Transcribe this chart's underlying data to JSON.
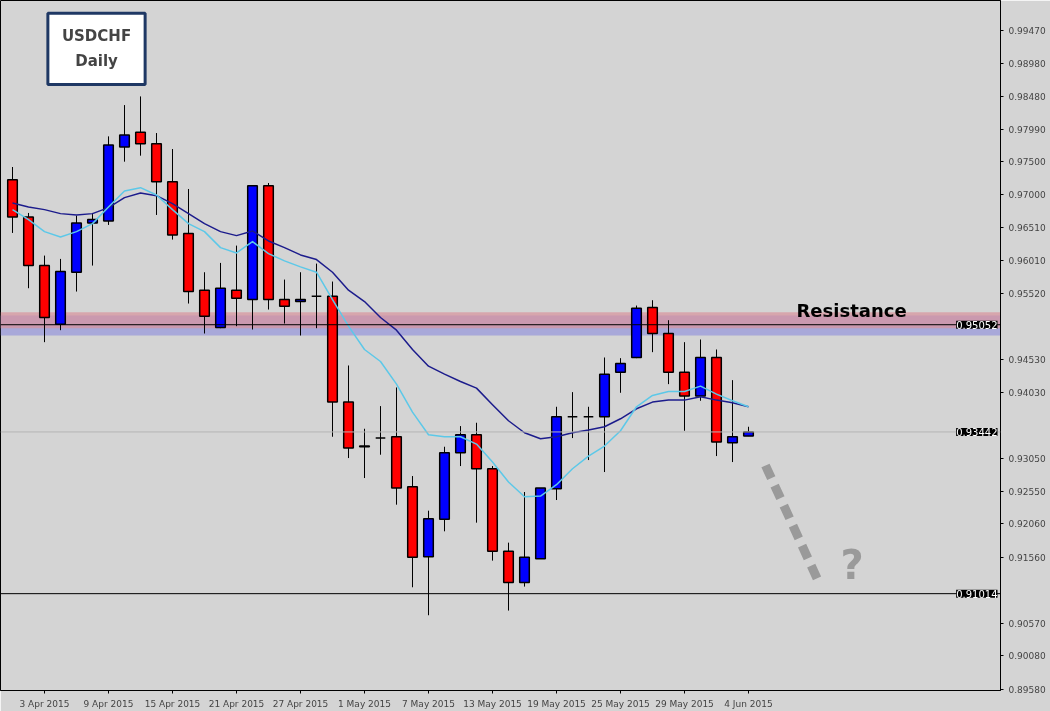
{
  "chart_data": {
    "type": "candlestick",
    "title": "USDCHF\nDaily",
    "categories": [
      null,
      null,
      "3 Apr 2015",
      null,
      null,
      null,
      "9 Apr 2015",
      null,
      null,
      null,
      "15 Apr 2015",
      null,
      null,
      null,
      "21 Apr 2015",
      null,
      null,
      null,
      "27 Apr 2015",
      null,
      null,
      null,
      "1 May 2015",
      null,
      null,
      null,
      "7 May 2015",
      null,
      null,
      null,
      "13 May 2015",
      null,
      null,
      null,
      "19 May 2015",
      null,
      null,
      null,
      "25 May 2015",
      null,
      null,
      null,
      "29 May 2015",
      null,
      null,
      null,
      "4 Jun 2015"
    ],
    "ohlc": [
      [
        0.9723,
        0.9742,
        0.9643,
        0.9667
      ],
      [
        0.9667,
        0.9673,
        0.956,
        0.9594
      ],
      [
        0.9594,
        0.9609,
        0.9479,
        0.9516
      ],
      [
        0.9506,
        0.9604,
        0.9497,
        0.9585
      ],
      [
        0.9584,
        0.9669,
        0.9555,
        0.9658
      ],
      [
        0.9658,
        0.9673,
        0.9594,
        0.9663
      ],
      [
        0.9661,
        0.9788,
        0.9655,
        0.9775
      ],
      [
        0.9772,
        0.9835,
        0.975,
        0.979
      ],
      [
        0.9794,
        0.9848,
        0.9759,
        0.9777
      ],
      [
        0.9777,
        0.9793,
        0.967,
        0.972
      ],
      [
        0.972,
        0.9769,
        0.9633,
        0.964
      ],
      [
        0.9642,
        0.9709,
        0.9537,
        0.9555
      ],
      [
        0.9557,
        0.9584,
        0.9492,
        0.9518
      ],
      [
        0.9501,
        0.9598,
        0.95,
        0.956
      ],
      [
        0.9557,
        0.9624,
        0.9503,
        0.9545
      ],
      [
        0.9543,
        0.9714,
        0.9498,
        0.9714
      ],
      [
        0.9714,
        0.9718,
        0.9528,
        0.9543
      ],
      [
        0.9543,
        0.9573,
        0.9507,
        0.9533
      ],
      [
        0.954,
        0.9584,
        0.9489,
        0.9543
      ],
      [
        0.9548,
        0.9597,
        0.95,
        0.9548
      ],
      [
        0.9548,
        0.957,
        0.9337,
        0.9389
      ],
      [
        0.9389,
        0.9444,
        0.9305,
        0.932
      ],
      [
        0.9322,
        0.9349,
        0.9275,
        0.9323
      ],
      [
        0.9335,
        0.9383,
        0.931,
        0.9335
      ],
      [
        0.9337,
        0.9411,
        0.9235,
        0.926
      ],
      [
        0.9262,
        0.9278,
        0.9111,
        0.9156
      ],
      [
        0.9157,
        0.9226,
        0.9069,
        0.9214
      ],
      [
        0.9213,
        0.9322,
        0.9195,
        0.9313
      ],
      [
        0.9313,
        0.9353,
        0.9293,
        0.934
      ],
      [
        0.934,
        0.9358,
        0.9208,
        0.9289
      ],
      [
        0.9289,
        0.9293,
        0.9151,
        0.9165
      ],
      [
        0.9165,
        0.9178,
        0.9076,
        0.9118
      ],
      [
        0.9118,
        0.9254,
        0.9112,
        0.9156
      ],
      [
        0.9154,
        0.926,
        0.9154,
        0.926
      ],
      [
        0.9259,
        0.9382,
        0.9242,
        0.9367
      ],
      [
        0.9367,
        0.9404,
        0.9335,
        0.9367
      ],
      [
        0.9367,
        0.9382,
        0.9302,
        0.9367
      ],
      [
        0.9367,
        0.9456,
        0.9284,
        0.9431
      ],
      [
        0.9434,
        0.9455,
        0.9403,
        0.9447
      ],
      [
        0.9456,
        0.9534,
        0.9455,
        0.953
      ],
      [
        0.9531,
        0.9542,
        0.9464,
        0.9492
      ],
      [
        0.9492,
        0.9512,
        0.9416,
        0.9434
      ],
      [
        0.9434,
        0.9479,
        0.9346,
        0.9398
      ],
      [
        0.9398,
        0.9483,
        0.9391,
        0.9456
      ],
      [
        0.9456,
        0.9468,
        0.9308,
        0.9329
      ],
      [
        0.9328,
        0.9422,
        0.9299,
        0.9337
      ],
      [
        0.9338,
        0.9352,
        0.9338,
        0.93442
      ]
    ],
    "colors": [
      "#ff0000",
      "#ff0000",
      "#ff0000",
      "#0000ff",
      "#0000ff",
      "#0000ff",
      "#0000ff",
      "#0000ff",
      "#ff0000",
      "#ff0000",
      "#ff0000",
      "#ff0000",
      "#ff0000",
      "#0000ff",
      "#ff0000",
      "#0000ff",
      "#ff0000",
      "#ff0000",
      "#0000ff",
      "#000000",
      "#ff0000",
      "#ff0000",
      "#0000ff",
      "#000000",
      "#ff0000",
      "#ff0000",
      "#0000ff",
      "#0000ff",
      "#0000ff",
      "#ff0000",
      "#ff0000",
      "#ff0000",
      "#0000ff",
      "#0000ff",
      "#0000ff",
      "#000000",
      "#000000",
      "#0000ff",
      "#0000ff",
      "#0000ff",
      "#ff0000",
      "#ff0000",
      "#ff0000",
      "#0000ff",
      "#ff0000",
      "#0000ff",
      "#0000ff"
    ],
    "series": [
      {
        "type": "line",
        "color": "#1c1c8c",
        "values": [
          0.9688,
          0.9682,
          0.9678,
          0.9672,
          0.967,
          0.9672,
          0.9681,
          0.9696,
          0.9703,
          0.9699,
          0.9687,
          0.9672,
          0.9657,
          0.9645,
          0.9639,
          0.9646,
          0.9631,
          0.9621,
          0.961,
          0.9603,
          0.9584,
          0.9557,
          0.954,
          0.9516,
          0.9497,
          0.9468,
          0.9443,
          0.9431,
          0.942,
          0.941,
          0.9385,
          0.9361,
          0.9343,
          0.9334,
          0.9337,
          0.9343,
          0.9347,
          0.9352,
          0.9364,
          0.9379,
          0.9389,
          0.9392,
          0.9392,
          0.9397,
          0.9392,
          0.9388,
          0.9382
        ]
      },
      {
        "type": "line",
        "color": "#5cc8e8",
        "values": [
          0.9678,
          0.9663,
          0.9645,
          0.9637,
          0.9645,
          0.9657,
          0.9682,
          0.9706,
          0.9711,
          0.97,
          0.9678,
          0.9657,
          0.9645,
          0.9621,
          0.9613,
          0.963,
          0.9612,
          0.9601,
          0.9592,
          0.9584,
          0.9543,
          0.9503,
          0.9468,
          0.945,
          0.9416,
          0.9374,
          0.934,
          0.9337,
          0.9337,
          0.9326,
          0.9299,
          0.9269,
          0.9247,
          0.9248,
          0.9265,
          0.9289,
          0.9308,
          0.9323,
          0.9346,
          0.9382,
          0.9399,
          0.9405,
          0.9405,
          0.9413,
          0.9401,
          0.9391,
          0.9382
        ]
      }
    ],
    "ylim": [
      0.8956,
      0.9992
    ],
    "yticks": [
      {
        "value": 0.8958,
        "label": "0.89580"
      },
      {
        "value": 0.9008,
        "label": "0.90080"
      },
      {
        "value": 0.9057,
        "label": "0.90570"
      },
      {
        "value": 0.9156,
        "label": "0.91560"
      },
      {
        "value": 0.9206,
        "label": "0.92060"
      },
      {
        "value": 0.9255,
        "label": "0.92550"
      },
      {
        "value": 0.9305,
        "label": "0.93050"
      },
      {
        "value": 0.9403,
        "label": "0.94030"
      },
      {
        "value": 0.9453,
        "label": "0.94530"
      },
      {
        "value": 0.9552,
        "label": "0.95520"
      },
      {
        "value": 0.9601,
        "label": "0.96010"
      },
      {
        "value": 0.9651,
        "label": "0.96510"
      },
      {
        "value": 0.97,
        "label": "0.97000"
      },
      {
        "value": 0.975,
        "label": "0.97500"
      },
      {
        "value": 0.9799,
        "label": "0.97990"
      },
      {
        "value": 0.9848,
        "label": "0.98480"
      },
      {
        "value": 0.9898,
        "label": "0.98980"
      },
      {
        "value": 0.9947,
        "label": "0.99470"
      }
    ],
    "ref_lines": [
      {
        "axis": "y",
        "value": 0.95052,
        "label": "0.95052",
        "color": "#000000"
      },
      {
        "axis": "y",
        "value": 0.93442,
        "label": "0.93442",
        "color": "#b4b4b4"
      },
      {
        "axis": "y",
        "value": 0.91014,
        "label": "0.91014",
        "color": "#000000"
      }
    ],
    "bands": [
      {
        "axis": "y",
        "from": 0.9489,
        "to": 0.9519,
        "color": "#9696dc"
      },
      {
        "axis": "y",
        "from": 0.95,
        "to": 0.9524,
        "color": "#d8939c"
      }
    ],
    "annotations": [
      {
        "text": "Resistance",
        "y": 0.95052
      },
      "?"
    ]
  }
}
